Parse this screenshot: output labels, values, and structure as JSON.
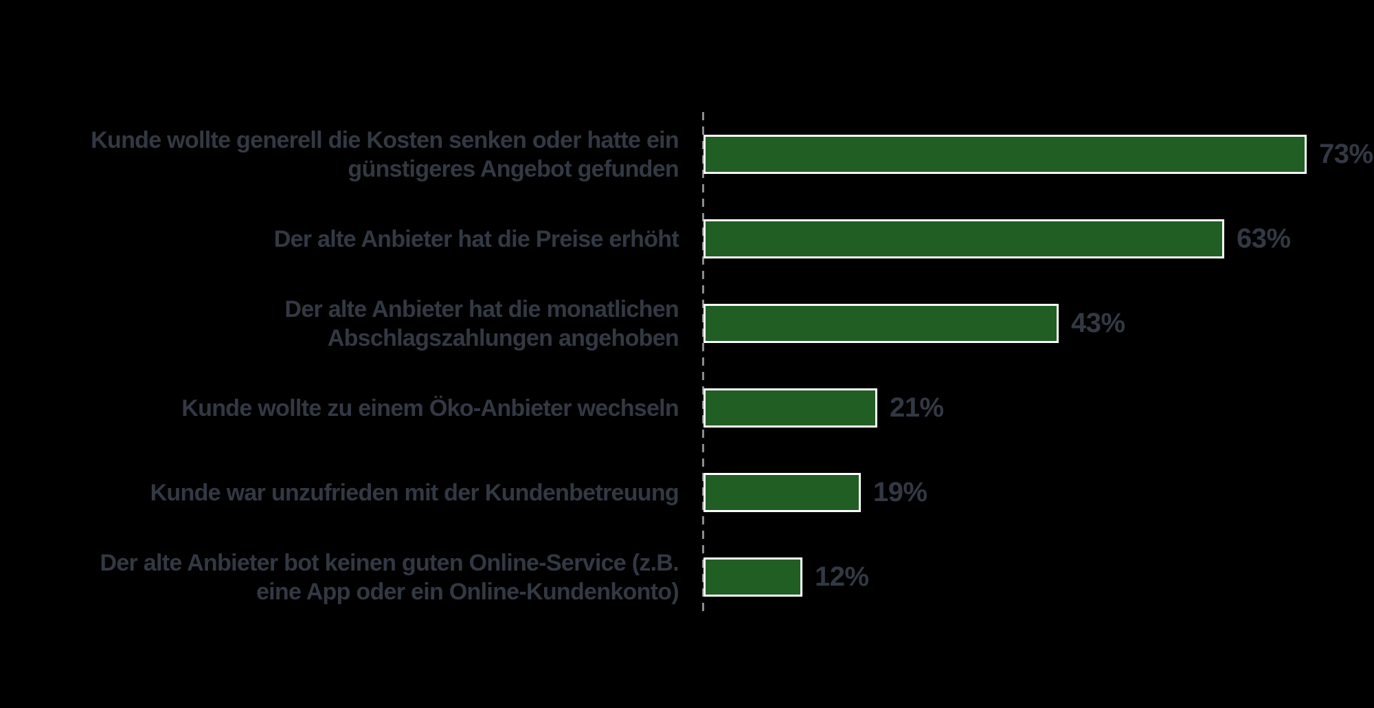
{
  "chart_data": {
    "type": "bar",
    "orientation": "horizontal",
    "title": "",
    "xlabel": "",
    "ylabel": "",
    "unit": "%",
    "xlim": [
      0,
      80
    ],
    "gridlines": false,
    "value_axis_visible": false,
    "baseline_style": "dashed",
    "categories": [
      "Kunde wollte generell die Kosten senken oder hatte ein günstigeres Angebot gefunden",
      "Der alte Anbieter hat die Preise erhöht",
      "Der alte Anbieter hat die monatlichen Abschlagszahlungen angehoben",
      "Kunde wollte zu einem Öko-Anbieter wechseln",
      "Kunde war unzufrieden mit der Kundenbetreuung",
      "Der alte Anbieter bot keinen guten Online-Service (z.B. eine App oder ein Online-Kundenkonto)"
    ],
    "label_lines": [
      [
        "Kunde wollte generell die Kosten senken oder hatte ein",
        "günstigeres Angebot gefunden"
      ],
      [
        "Der alte Anbieter hat die Preise erhöht"
      ],
      [
        "Der alte Anbieter hat die monatlichen",
        "Abschlagszahlungen angehoben"
      ],
      [
        "Kunde wollte zu einem Öko-Anbieter wechseln"
      ],
      [
        "Kunde war unzufrieden mit der Kundenbetreuung"
      ],
      [
        "Der alte Anbieter bot keinen guten Online-Service (z.B.",
        "eine App oder ein Online-Kundenkonto)"
      ]
    ],
    "values": [
      73,
      63,
      43,
      21,
      19,
      12
    ],
    "value_labels": [
      "73%",
      "63%",
      "43%",
      "21%",
      "19%",
      "12%"
    ]
  },
  "colors": {
    "background": "#000000",
    "bar_fill": "#215E23",
    "bar_border": "#FFFFFF",
    "axis_line": "#8C8C8C",
    "text": "#333943"
  }
}
